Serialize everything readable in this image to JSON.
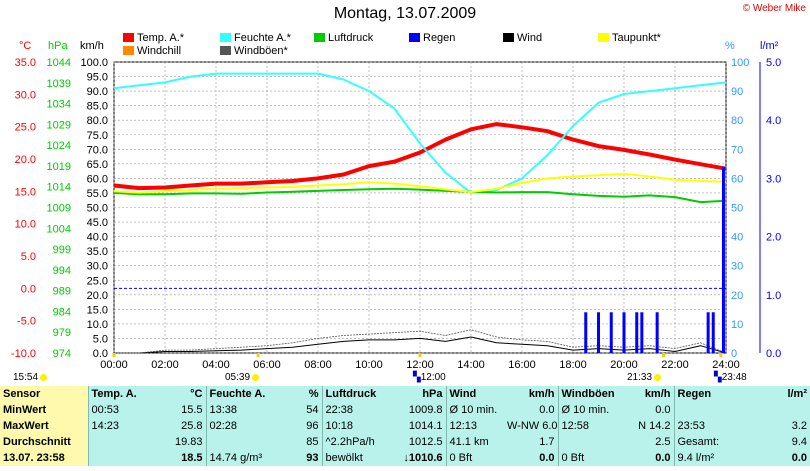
{
  "title": "Montag, 13.07.2009",
  "credit": "© Weber Mike",
  "legend": [
    {
      "label": "Temp. A.*",
      "color": "#ff0000"
    },
    {
      "label": "Feuchte A.*",
      "color": "#33ffff"
    },
    {
      "label": "Luftdruck",
      "color": "#00cc00"
    },
    {
      "label": "Regen",
      "color": "#0000ff"
    },
    {
      "label": "Wind",
      "color": "#000000"
    },
    {
      "label": "Taupunkt*",
      "color": "#ffff00"
    },
    {
      "label": "Windchill",
      "color": "#ff8800"
    },
    {
      "label": "Windböen*",
      "color": "#555555"
    }
  ],
  "units": {
    "temp": "°C",
    "pressure": "hPa",
    "wind": "km/h",
    "humidity": "%",
    "rain": "l/m²"
  },
  "chart_data": {
    "type": "line",
    "title": "Montag, 13.07.2009",
    "x_ticks": [
      "00:00",
      "02:00",
      "04:00",
      "06:00",
      "08:00",
      "10:00",
      "12:00",
      "14:00",
      "16:00",
      "18:00",
      "20:00",
      "22:00",
      "24:00"
    ],
    "xlim_hours": [
      0,
      24
    ],
    "axes": {
      "temp_c": {
        "ticks": [
          "35.0",
          "30.0",
          "25.0",
          "20.0",
          "15.0",
          "10.0",
          "5.0",
          "0.0",
          "-5.0",
          "-10.0"
        ],
        "ylim": [
          -10,
          35
        ],
        "color": "#ff0000"
      },
      "pressure_hpa": {
        "ticks": [
          "1044",
          "1039",
          "1034",
          "1029",
          "1024",
          "1019",
          "1014",
          "1009",
          "1004",
          "999",
          "994",
          "989",
          "984",
          "979",
          "974"
        ],
        "ylim": [
          974,
          1044
        ],
        "color": "#00cc00"
      },
      "wind_kmh": {
        "ticks": [
          "100.0",
          "95.0",
          "90.0",
          "85.0",
          "80.0",
          "75.0",
          "70.0",
          "65.0",
          "60.0",
          "55.0",
          "50.0",
          "45.0",
          "40.0",
          "35.0",
          "30.0",
          "25.0",
          "20.0",
          "15.0",
          "10.0",
          "5.0",
          "0.0"
        ],
        "ylim": [
          0,
          100
        ],
        "color": "#000000"
      },
      "humidity_pct": {
        "ticks": [
          "100",
          "90",
          "80",
          "70",
          "60",
          "50",
          "40",
          "30",
          "20",
          "10",
          "0"
        ],
        "ylim": [
          0,
          100
        ],
        "color": "#3399ff"
      },
      "rain_lm2": {
        "ticks": [
          "5.0",
          "4.0",
          "3.0",
          "2.0",
          "1.0",
          "0.0"
        ],
        "ylim": [
          0,
          5
        ],
        "color": "#0000ff"
      }
    },
    "series": [
      {
        "name": "Temp. A.*",
        "axis": "temp_c",
        "color": "#ff0000",
        "x": [
          0,
          1,
          2,
          3,
          4,
          5,
          6,
          7,
          8,
          9,
          10,
          11,
          12,
          13,
          14,
          15,
          16,
          17,
          18,
          19,
          20,
          21,
          22,
          23,
          24
        ],
        "y": [
          15.9,
          15.5,
          15.6,
          15.9,
          16.2,
          16.2,
          16.4,
          16.6,
          17.0,
          17.6,
          18.9,
          19.6,
          21.0,
          23.0,
          24.6,
          25.4,
          24.9,
          24.3,
          23.0,
          22.0,
          21.4,
          20.7,
          19.9,
          19.2,
          18.5
        ]
      },
      {
        "name": "Feuchte A.*",
        "axis": "humidity_pct",
        "color": "#33ffff",
        "x": [
          0,
          1,
          2,
          3,
          4,
          5,
          6,
          7,
          8,
          9,
          10,
          11,
          12,
          13,
          14,
          15,
          16,
          17,
          18,
          19,
          20,
          21,
          22,
          23,
          24
        ],
        "y": [
          91,
          92,
          93,
          95,
          96,
          96,
          96,
          96,
          96,
          94,
          90,
          84,
          72,
          62,
          55,
          56,
          60,
          68,
          78,
          86,
          89,
          90,
          91,
          92,
          93
        ]
      },
      {
        "name": "Luftdruck",
        "axis": "pressure_hpa",
        "color": "#00cc00",
        "x": [
          0,
          1,
          2,
          3,
          4,
          5,
          6,
          7,
          8,
          9,
          10,
          11,
          12,
          13,
          14,
          15,
          16,
          17,
          18,
          19,
          20,
          21,
          22,
          23,
          24
        ],
        "y": [
          1012.5,
          1012.2,
          1012.2,
          1012.4,
          1012.4,
          1012.3,
          1012.6,
          1012.8,
          1013.0,
          1013.2,
          1013.4,
          1013.5,
          1013.3,
          1013.0,
          1012.8,
          1012.6,
          1012.7,
          1012.7,
          1012.2,
          1011.8,
          1011.6,
          1011.9,
          1011.5,
          1010.3,
          1010.6
        ]
      },
      {
        "name": "Taupunkt*",
        "axis": "temp_c",
        "color": "#ffff00",
        "x": [
          0,
          1,
          2,
          3,
          4,
          5,
          6,
          7,
          8,
          9,
          10,
          11,
          12,
          13,
          14,
          15,
          16,
          17,
          18,
          19,
          20,
          21,
          22,
          23,
          24
        ],
        "y": [
          15.0,
          14.8,
          15.0,
          15.2,
          15.4,
          15.5,
          15.6,
          15.7,
          15.9,
          16.1,
          16.4,
          16.2,
          15.8,
          15.3,
          14.9,
          15.4,
          16.3,
          17.0,
          17.3,
          17.5,
          17.7,
          17.3,
          16.8,
          16.6,
          16.5
        ]
      },
      {
        "name": "Wind",
        "axis": "wind_kmh",
        "color": "#000000",
        "x": [
          0,
          1,
          2,
          3,
          4,
          5,
          6,
          7,
          8,
          9,
          10,
          11,
          12,
          13,
          14,
          15,
          16,
          17,
          18,
          19,
          20,
          21,
          22,
          23,
          24
        ],
        "y": [
          0,
          0,
          0.5,
          0.5,
          0.8,
          1.0,
          1.5,
          2.0,
          3.0,
          4.0,
          4.5,
          4.5,
          5.0,
          4.0,
          5.5,
          3.5,
          3.0,
          2.5,
          1.0,
          1.5,
          1.0,
          1.5,
          0.5,
          2.5,
          0
        ]
      },
      {
        "name": "Windböen*",
        "axis": "wind_kmh",
        "color": "#555555",
        "x": [
          0,
          1,
          2,
          3,
          4,
          5,
          6,
          7,
          8,
          9,
          10,
          11,
          12,
          13,
          14,
          15,
          16,
          17,
          18,
          19,
          20,
          21,
          22,
          23,
          24
        ],
        "y": [
          0,
          0,
          1.0,
          1.0,
          1.5,
          2.0,
          2.5,
          3.5,
          5.0,
          6.0,
          6.5,
          7.0,
          7.5,
          6.0,
          8.0,
          5.5,
          4.5,
          4.0,
          2.0,
          2.5,
          2.0,
          2.5,
          1.5,
          3.5,
          0
        ]
      },
      {
        "name": "Regen",
        "axis": "rain_lm2",
        "type": "bar",
        "color": "#0000ff",
        "x": [
          18.5,
          19.0,
          19.5,
          20.0,
          20.5,
          20.7,
          21.3,
          23.3,
          23.5,
          23.9
        ],
        "y": [
          0.7,
          0.7,
          0.7,
          0.7,
          0.7,
          0.7,
          0.7,
          0.7,
          0.7,
          3.2
        ]
      }
    ],
    "reference_line": {
      "axis": "temp_c",
      "value": 0.0,
      "color": "#0000ff"
    },
    "events": [
      {
        "label": "15:54",
        "hour": 0
      },
      {
        "label": "05:39",
        "hour": 5.65
      },
      {
        "label": "12:00",
        "hour": 12.0
      },
      {
        "label": "21:33",
        "hour": 21.55
      },
      {
        "label": "23:48",
        "hour": 23.8
      }
    ],
    "grid": true
  },
  "stats": {
    "header": {
      "c1": "Sensor",
      "temp": "Temp. A.",
      "temp_u": "°C",
      "hum": "Feuchte A.",
      "hum_u": "%",
      "press": "Luftdruck",
      "press_u": "hPa",
      "wind": "Wind",
      "wind_u": "km/h",
      "gust": "Windböen",
      "gust_u": "km/h",
      "rain": "Regen",
      "rain_u": "l/m²"
    },
    "rows": [
      {
        "c1": "MinWert",
        "t_time": "00:53",
        "t_val": "15.5",
        "h_time": "13:38",
        "h_val": "54",
        "p_time": "22:38",
        "p_val": "1009.8",
        "w_lab": "Ø 10 min.",
        "w_val": "0.0",
        "g_lab": "Ø 10 min.",
        "g_val": "0.0",
        "r_lab": "",
        "r_val": ""
      },
      {
        "c1": "MaxWert",
        "t_time": "14:23",
        "t_val": "25.8",
        "h_time": "02:28",
        "h_val": "96",
        "p_time": "10:18",
        "p_val": "1014.1",
        "w_lab": "12:13",
        "w_val": "W-NW 6.0",
        "g_lab": "12:58",
        "g_val": "N 14.2",
        "r_lab": "23:53",
        "r_val": "3.2"
      },
      {
        "c1": "Durchschnitt",
        "t_time": "",
        "t_val": "19.83",
        "h_time": "",
        "h_val": "85",
        "p_time": "^2.2hPa/h",
        "p_val": "1012.5",
        "w_lab": "41.1 km",
        "w_val": "1.7",
        "g_lab": "",
        "g_val": "2.5",
        "r_lab": "Gesamt:",
        "r_val": "9.4"
      },
      {
        "c1": "13.07. 23:58",
        "t_time": "",
        "t_val": "18.5",
        "h_time": "14.74 g/m³",
        "h_val": "93",
        "p_time": "bewölkt",
        "p_val": "↓1010.6",
        "w_lab": "0 Bft",
        "w_val": "0.0",
        "g_lab": "0 Bft",
        "g_val": "0.0",
        "r_lab": "9.4 l/m²",
        "r_val": "0.0"
      }
    ]
  }
}
